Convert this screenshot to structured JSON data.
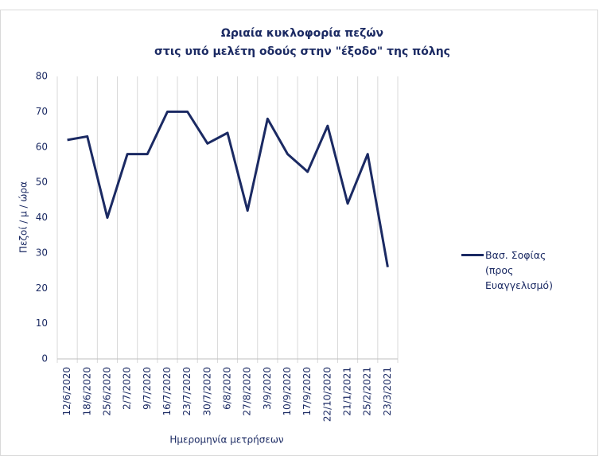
{
  "chart_data": {
    "type": "line",
    "title": [
      "Ωριαία κυκλοφορία πεζών",
      "στις υπό μελέτη οδούς στην \"έξοδο\" της πόλης"
    ],
    "xlabel": "Ημερομηνία μετρήσεων",
    "ylabel": "Πεζοί / μ / ώρα",
    "categories": [
      "12/6/2020",
      "18/6/2020",
      "25/6/2020",
      "2/7/2020",
      "9/7/2020",
      "16/7/2020",
      "23/7/2020",
      "30/7/2020",
      "6/8/2020",
      "27/8/2020",
      "3/9/2020",
      "10/9/2020",
      "17/9/2020",
      "22/10/2020",
      "21/1/2021",
      "25/2/2021",
      "23/3/2021"
    ],
    "series": [
      {
        "name": "Βασ. Σοφίας (προς Ευαγγελισμό)",
        "color": "#1b2a63",
        "values": [
          62,
          63,
          40,
          58,
          58,
          70,
          70,
          61,
          64,
          42,
          68,
          58,
          53,
          66,
          44,
          58,
          26
        ]
      }
    ],
    "ylim": [
      0,
      80
    ],
    "yticks": [
      0,
      10,
      20,
      30,
      40,
      50,
      60,
      70,
      80
    ],
    "grid": true,
    "legend": "right"
  }
}
